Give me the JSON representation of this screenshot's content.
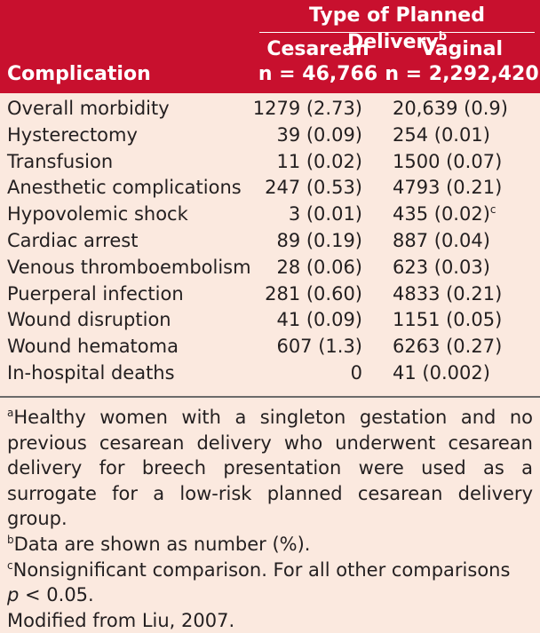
{
  "header": {
    "group_title": "Type of Planned Delivery",
    "group_sup": "b",
    "row_header": "Complication",
    "cesarean": {
      "label": "Cesarean",
      "n": "n = 46,766"
    },
    "vaginal": {
      "label": "Vaginal",
      "n": "n = 2,292,420"
    }
  },
  "rows": [
    {
      "name": "Overall morbidity",
      "cesarean": "1279 (2.73)",
      "vaginal": "20,639 (0.9)",
      "sup": ""
    },
    {
      "name": "Hysterectomy",
      "cesarean": "39 (0.09)",
      "vaginal": "254 (0.01)",
      "sup": ""
    },
    {
      "name": "Transfusion",
      "cesarean": "11 (0.02)",
      "vaginal": "1500 (0.07)",
      "sup": ""
    },
    {
      "name": "Anesthetic complications",
      "cesarean": "247 (0.53)",
      "vaginal": "4793 (0.21)",
      "sup": ""
    },
    {
      "name": "Hypovolemic shock",
      "cesarean": "3 (0.01)",
      "vaginal": "435 (0.02)",
      "sup": "c"
    },
    {
      "name": "Cardiac arrest",
      "cesarean": "89 (0.19)",
      "vaginal": "887 (0.04)",
      "sup": ""
    },
    {
      "name": "Venous thromboembolism",
      "cesarean": "28 (0.06)",
      "vaginal": "623 (0.03)",
      "sup": ""
    },
    {
      "name": "Puerperal infection",
      "cesarean": "281 (0.60)",
      "vaginal": "4833 (0.21)",
      "sup": ""
    },
    {
      "name": "Wound disruption",
      "cesarean": "41 (0.09)",
      "vaginal": "1151 (0.05)",
      "sup": ""
    },
    {
      "name": "Wound hematoma",
      "cesarean": "607 (1.3)",
      "vaginal": "6263 (0.27)",
      "sup": ""
    },
    {
      "name": "In-hospital deaths",
      "cesarean": "0",
      "vaginal": "41 (0.002)",
      "sup": ""
    }
  ],
  "footnotes": {
    "a_mark": "a",
    "a_text": "Healthy women with a singleton gestation and no previous cesarean delivery who underwent cesarean delivery for breech presentation were used as a surrogate for a low-risk planned cesarean delivery group.",
    "b_mark": "b",
    "b_text": "Data are shown as number (%).",
    "c_mark": "c",
    "c_text": "Nonsignificant comparison. For all other comparisons",
    "c_p": "p",
    "c_p_rest": " < 0.05.",
    "source": "Modified from Liu, 2007."
  },
  "colors": {
    "header_bg": "#c8102e",
    "body_bg": "#fbe9df",
    "text": "#231f20"
  }
}
